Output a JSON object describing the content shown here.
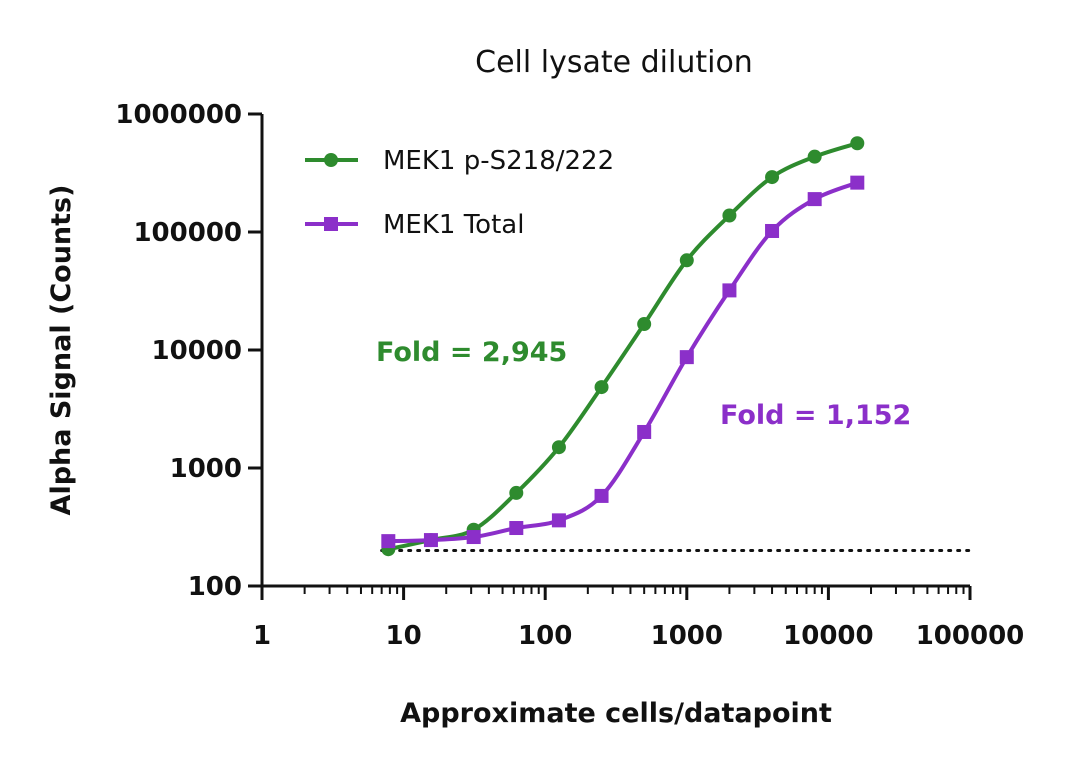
{
  "chart_data": {
    "type": "line",
    "title": "Cell lysate dilution",
    "xlabel": "Approximate cells/datapoint",
    "ylabel": "Alpha Signal (Counts)",
    "xscale": "log",
    "yscale": "log",
    "xlim": [
      1,
      100000
    ],
    "ylim": [
      100,
      1000000
    ],
    "xticks": [
      "1",
      "10",
      "100",
      "1000",
      "10000",
      "100000"
    ],
    "yticks": [
      "100",
      "1000",
      "10000",
      "100000",
      "1000000"
    ],
    "grid": false,
    "legend_position": "top-left",
    "x": [
      7.8,
      15.6,
      31.25,
      62.5,
      125,
      250,
      500,
      1000,
      2000,
      4000,
      8000,
      16000
    ],
    "series": [
      {
        "name": "MEK1 p-S218/222",
        "color": "#2e8b2e",
        "marker": "circle",
        "values": [
          205,
          245,
          300,
          615,
          1500,
          4850,
          16600,
          57600,
          138000,
          292000,
          435000,
          565000
        ]
      },
      {
        "name": "MEK1 Total",
        "color": "#8b2fc9",
        "marker": "square",
        "values": [
          240,
          245,
          260,
          310,
          360,
          580,
          2020,
          8700,
          32000,
          102000,
          190000,
          262000
        ]
      }
    ],
    "baseline": 200,
    "annotations": [
      {
        "text": "Fold = 2,945",
        "color": "#2e8b2e"
      },
      {
        "text": "Fold = 1,152",
        "color": "#8b2fc9"
      }
    ]
  }
}
